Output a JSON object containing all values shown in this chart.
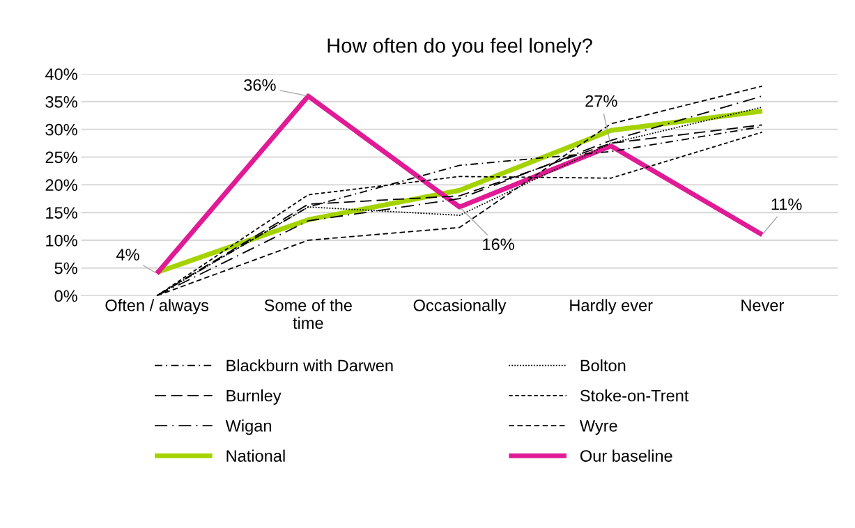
{
  "chart_data": {
    "type": "line",
    "title": "How often do you feel lonely?",
    "categories": [
      "Often / always",
      "Some of the time",
      "Occasionally",
      "Hardly ever",
      "Never"
    ],
    "ylim": [
      0,
      40
    ],
    "yticks": [
      {
        "value": 0,
        "label": "0%"
      },
      {
        "value": 5,
        "label": "5%"
      },
      {
        "value": 10,
        "label": "10%"
      },
      {
        "value": 15,
        "label": "15%"
      },
      {
        "value": 20,
        "label": "20%"
      },
      {
        "value": 25,
        "label": "25%"
      },
      {
        "value": 30,
        "label": "30%"
      },
      {
        "value": 35,
        "label": "35%"
      },
      {
        "value": 40,
        "label": "40%"
      }
    ],
    "grid": "y",
    "legend": "bottom",
    "marker": "none",
    "series": [
      {
        "name": "Blackburn with Darwen",
        "color": "#000000",
        "line_style": "dashdot",
        "values": [
          0,
          16,
          23.5,
          26,
          30.5
        ]
      },
      {
        "name": "Bolton",
        "color": "#000000",
        "line_style": "dotted",
        "values": [
          0,
          16,
          14.5,
          27.5,
          34
        ]
      },
      {
        "name": "Burnley",
        "color": "#000000",
        "line_style": "longdash",
        "values": [
          0,
          16.5,
          18,
          27.5,
          30.8
        ]
      },
      {
        "name": "Stoke-on-Trent",
        "color": "#000000",
        "line_style": "shortdash",
        "values": [
          0,
          18.2,
          21.5,
          21.2,
          29.5
        ]
      },
      {
        "name": "Wigan",
        "color": "#000000",
        "line_style": "longdashdot",
        "values": [
          0,
          13.5,
          17.5,
          28,
          36
        ]
      },
      {
        "name": "Wyre",
        "color": "#000000",
        "line_style": "dashed",
        "values": [
          0,
          10,
          12.3,
          31,
          37.8
        ]
      },
      {
        "name": "National",
        "color": "#a4d300",
        "line_style": "solid",
        "values": [
          4.2,
          13.7,
          19,
          29.8,
          33.3
        ]
      },
      {
        "name": "Our baseline",
        "color": "#e01b95",
        "line_style": "solid",
        "values": [
          4,
          36,
          16,
          27,
          11
        ],
        "value_labels": [
          "4%",
          "36%",
          "16%",
          "27%",
          "11%"
        ]
      }
    ]
  }
}
